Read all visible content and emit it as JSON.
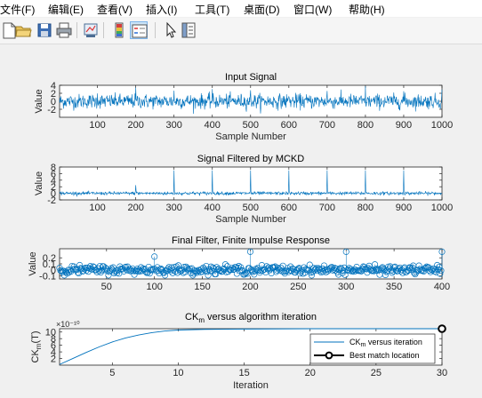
{
  "menu": {
    "items": [
      "文件(F)",
      "编辑(E)",
      "查看(V)",
      "插入(I)",
      "工具(T)",
      "桌面(D)",
      "窗口(W)",
      "帮助(H)"
    ]
  },
  "toolbar": {
    "buttons": [
      {
        "icon": "new-file-icon",
        "pressed": false
      },
      {
        "icon": "open-folder-icon",
        "pressed": false
      },
      {
        "icon": "save-icon",
        "pressed": false
      },
      {
        "icon": "print-icon",
        "pressed": false
      },
      {
        "icon": "link-plot-icon",
        "pressed": false
      },
      {
        "icon": "colorbar-icon",
        "pressed": false
      },
      {
        "icon": "legend-icon",
        "pressed": true
      },
      {
        "icon": "pointer-icon",
        "pressed": false
      },
      {
        "icon": "property-inspector-icon",
        "pressed": false
      }
    ]
  },
  "colors": {
    "line": "#0072bd",
    "axis": "#262626",
    "background": "#f0f0f0"
  },
  "plots": [
    {
      "title": "Input Signal",
      "xlabel": "Sample Number",
      "ylabel": "Value",
      "xlim": [
        1,
        1000
      ],
      "ylim": [
        -4,
        4
      ],
      "xticks": [
        100,
        200,
        300,
        400,
        500,
        600,
        700,
        800,
        900,
        1000
      ],
      "yticks": [
        -2,
        0,
        2,
        4
      ],
      "type": "line"
    },
    {
      "title": "Signal Filtered by MCKD",
      "xlabel": "Sample Number",
      "ylabel": "Value",
      "xlim": [
        1,
        1000
      ],
      "ylim": [
        -2,
        8
      ],
      "xticks": [
        100,
        200,
        300,
        400,
        500,
        600,
        700,
        800,
        900,
        1000
      ],
      "yticks": [
        -2,
        0,
        2,
        4,
        6,
        8
      ],
      "type": "line",
      "peaks_at": [
        200,
        300,
        400,
        500,
        600,
        700,
        800,
        900
      ],
      "peak_values": [
        2.5,
        7,
        7,
        7,
        7,
        7,
        7,
        7
      ]
    },
    {
      "title": "Final Filter, Finite Impulse Response",
      "xlabel": "",
      "ylabel": "Value",
      "xlim": [
        1,
        400
      ],
      "ylim": [
        -0.15,
        0.35
      ],
      "xticks": [
        50,
        100,
        150,
        200,
        250,
        300,
        350,
        400
      ],
      "yticks": [
        "-0.1",
        "0",
        "0.1",
        "0.2"
      ],
      "type": "stem",
      "large_stems_at": [
        100,
        200,
        300,
        400
      ],
      "large_stem_values": [
        0.22,
        0.3,
        0.3,
        0.3
      ]
    },
    {
      "title_base": "CK",
      "title_sub": "m",
      "title_rest": " versus algorithm iteration",
      "xlabel": "Iteration",
      "ylabel_base": "CK",
      "ylabel_sub": "m",
      "ylabel_rest": "(T)",
      "exponent": "×10⁻¹⁰",
      "xlim": [
        1,
        30
      ],
      "ylim": [
        0,
        11
      ],
      "xticks": [
        5,
        10,
        15,
        20,
        25,
        30
      ],
      "yticks": [
        2,
        4,
        6,
        8,
        10
      ],
      "type": "line",
      "legend": [
        {
          "base": "CK",
          "sub": "m",
          "rest": " versus iteration",
          "style": "line"
        },
        {
          "base": "Best match location",
          "sub": "",
          "rest": "",
          "style": "marker"
        }
      ],
      "best_iteration": 30,
      "best_value": 11
    }
  ],
  "chart_data": [
    {
      "type": "line",
      "title": "Input Signal",
      "xlabel": "Sample Number",
      "ylabel": "Value",
      "x_range": [
        1,
        1000
      ],
      "y_range": [
        -4,
        4
      ],
      "notes": "noisy signal, values mostly between -2 and 2"
    },
    {
      "type": "line",
      "title": "Signal Filtered by MCKD",
      "xlabel": "Sample Number",
      "ylabel": "Value",
      "x_range": [
        1,
        1000
      ],
      "y_range": [
        -2,
        8
      ],
      "peaks": {
        "x": [
          200,
          300,
          400,
          500,
          600,
          700,
          800,
          900
        ],
        "y": [
          2.5,
          7,
          7,
          7,
          7,
          7,
          7,
          7
        ]
      }
    },
    {
      "type": "scatter",
      "title": "Final Filter, Finite Impulse Response",
      "ylabel": "Value",
      "x_range": [
        1,
        400
      ],
      "y_range": [
        -0.15,
        0.35
      ],
      "large_values": {
        "x": [
          100,
          200,
          300,
          400
        ],
        "y": [
          0.22,
          0.3,
          0.3,
          0.3
        ]
      }
    },
    {
      "type": "line",
      "title": "CKm versus algorithm iteration",
      "xlabel": "Iteration",
      "ylabel": "CKm(T)",
      "x": [
        1,
        2,
        3,
        4,
        5,
        6,
        7,
        8,
        9,
        10,
        12,
        15,
        20,
        25,
        30
      ],
      "y": [
        0.2,
        2.0,
        3.8,
        5.5,
        7.0,
        8.2,
        9.1,
        9.8,
        10.3,
        10.6,
        10.8,
        10.9,
        11.0,
        11.0,
        11.0
      ],
      "y_scale": "×10^-10",
      "best_match": {
        "x": 30,
        "y": 11
      }
    }
  ]
}
